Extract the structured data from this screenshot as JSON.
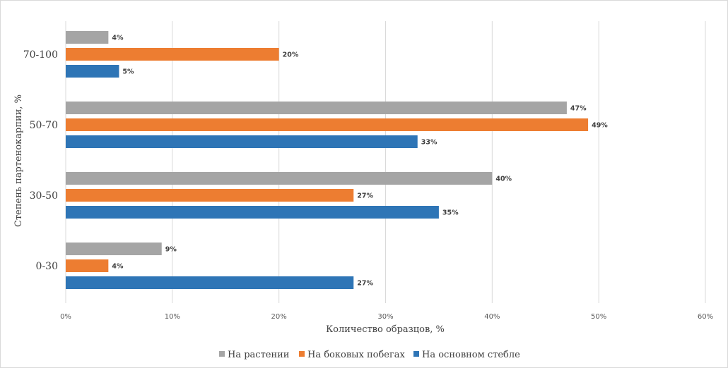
{
  "chart_data": {
    "type": "bar",
    "orientation": "horizontal",
    "title": "",
    "xlabel": "Количество образцов, %",
    "ylabel": "Степень партенокарпии, %",
    "xlim": [
      0,
      60
    ],
    "xticks": [
      "0%",
      "10%",
      "20%",
      "30%",
      "40%",
      "50%",
      "60%"
    ],
    "grid": true,
    "legend_position": "bottom",
    "categories": [
      "70-100",
      "50-70",
      "30-50",
      "0-30"
    ],
    "series": [
      {
        "name": "На растении",
        "color": "#a5a5a5",
        "values": [
          4,
          47,
          40,
          9
        ],
        "labels": [
          "4%",
          "47%",
          "40%",
          "9%"
        ]
      },
      {
        "name": "На боковых побегах",
        "color": "#ed7d31",
        "values": [
          20,
          49,
          27,
          4
        ],
        "labels": [
          "20%",
          "49%",
          "27%",
          "4%"
        ]
      },
      {
        "name": "На основном стебле",
        "color": "#2e75b6",
        "values": [
          5,
          33,
          35,
          27
        ],
        "labels": [
          "5%",
          "33%",
          "35%",
          "27%"
        ]
      }
    ]
  }
}
